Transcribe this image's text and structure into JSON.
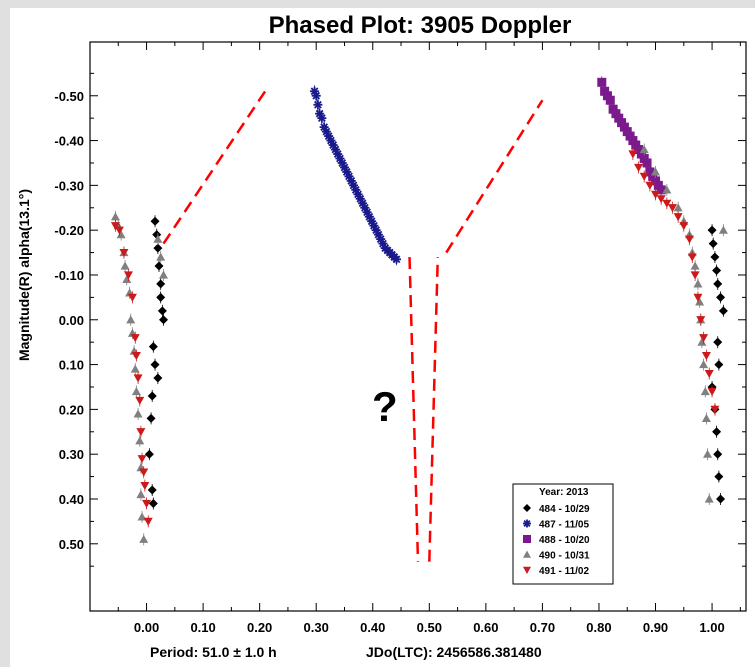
{
  "chart_data": {
    "type": "scatter",
    "title": "Phased Plot: 3905 Doppler",
    "ylabel": "Magnitude(R) alpha(13.1°)",
    "xlabel_left": "Period: 51.0 ± 1.0 h",
    "xlabel_right": "JDo(LTC): 2456586.381480",
    "xlim": [
      -0.1,
      1.06
    ],
    "ylim": [
      0.65,
      -0.62
    ],
    "y_inverted": true,
    "x_ticks": [
      "0.00",
      "0.10",
      "0.20",
      "0.30",
      "0.40",
      "0.50",
      "0.60",
      "0.70",
      "0.80",
      "0.90",
      "1.00"
    ],
    "y_ticks": [
      "-0.50",
      "-0.40",
      "-0.30",
      "-0.20",
      "-0.10",
      "0.00",
      "0.10",
      "0.20",
      "0.30",
      "0.40",
      "0.50"
    ],
    "annotation": "?",
    "legend": {
      "title": "Year: 2013",
      "placement": "bottom-right",
      "entries": [
        {
          "label": "484 - 10/29",
          "marker": "diamond",
          "color": "#000000"
        },
        {
          "label": "487 - 11/05",
          "marker": "asterisk",
          "color": "#1a1a8c"
        },
        {
          "label": "488 - 10/20",
          "marker": "square",
          "color": "#7a1a8c"
        },
        {
          "label": "490 - 10/31",
          "marker": "triangle-up",
          "color": "#808080"
        },
        {
          "label": "491 - 11/02",
          "marker": "triangle-down",
          "color": "#cc1a1a"
        }
      ]
    },
    "model_curve": {
      "color": "#ff0000",
      "style": "dashed",
      "segments": [
        [
          [
            0.03,
            -0.17
          ],
          [
            0.215,
            -0.52
          ]
        ],
        [
          [
            0.465,
            -0.14
          ],
          [
            0.48,
            0.54
          ]
        ],
        [
          [
            0.5,
            0.54
          ],
          [
            0.515,
            -0.14
          ]
        ],
        [
          [
            0.53,
            -0.15
          ],
          [
            0.7,
            -0.49
          ]
        ]
      ]
    },
    "series": [
      {
        "name": "484 - 10/29",
        "marker": "diamond",
        "color": "#000000",
        "x": [
          0.015,
          0.018,
          0.02,
          0.022,
          0.025,
          0.025,
          0.028,
          0.03,
          0.012,
          0.015,
          0.02,
          0.01,
          0.008,
          0.005,
          0.01,
          0.012,
          1.0,
          1.002,
          1.005,
          1.008,
          1.01,
          1.015,
          1.02,
          1.01,
          1.012,
          1.0,
          1.005,
          1.008,
          1.01,
          1.012,
          1.015
        ],
        "y": [
          -0.22,
          -0.19,
          -0.16,
          -0.12,
          -0.08,
          -0.05,
          -0.02,
          0.0,
          0.06,
          0.1,
          0.13,
          0.17,
          0.22,
          0.3,
          0.38,
          0.41,
          -0.2,
          -0.17,
          -0.14,
          -0.11,
          -0.08,
          -0.05,
          -0.02,
          0.05,
          0.1,
          0.15,
          0.2,
          0.25,
          0.3,
          0.35,
          0.4
        ]
      },
      {
        "name": "487 - 11/05",
        "marker": "asterisk",
        "color": "#1a1a8c",
        "x": [
          0.297,
          0.3,
          0.303,
          0.306,
          0.31,
          0.314,
          0.318,
          0.322,
          0.326,
          0.33,
          0.334,
          0.338,
          0.342,
          0.346,
          0.35,
          0.354,
          0.358,
          0.362,
          0.366,
          0.37,
          0.374,
          0.378,
          0.382,
          0.386,
          0.39,
          0.394,
          0.398,
          0.402,
          0.406,
          0.41,
          0.414,
          0.418,
          0.422,
          0.426,
          0.43,
          0.434,
          0.438,
          0.442
        ],
        "y": [
          -0.51,
          -0.5,
          -0.48,
          -0.46,
          -0.45,
          -0.43,
          -0.42,
          -0.41,
          -0.4,
          -0.39,
          -0.38,
          -0.37,
          -0.36,
          -0.35,
          -0.34,
          -0.33,
          -0.32,
          -0.31,
          -0.3,
          -0.29,
          -0.28,
          -0.27,
          -0.26,
          -0.25,
          -0.24,
          -0.23,
          -0.22,
          -0.21,
          -0.2,
          -0.19,
          -0.18,
          -0.17,
          -0.16,
          -0.155,
          -0.15,
          -0.145,
          -0.14,
          -0.135
        ]
      },
      {
        "name": "488 - 10/20",
        "marker": "square",
        "color": "#7a1a8c",
        "x": [
          0.805,
          0.81,
          0.815,
          0.82,
          0.825,
          0.83,
          0.835,
          0.84,
          0.845,
          0.85,
          0.855,
          0.86,
          0.865,
          0.87,
          0.875,
          0.88,
          0.885,
          0.89,
          0.895,
          0.9,
          0.905,
          0.91
        ],
        "y": [
          -0.53,
          -0.51,
          -0.5,
          -0.49,
          -0.47,
          -0.46,
          -0.45,
          -0.44,
          -0.43,
          -0.42,
          -0.41,
          -0.4,
          -0.39,
          -0.38,
          -0.37,
          -0.36,
          -0.35,
          -0.33,
          -0.32,
          -0.31,
          -0.3,
          -0.29
        ]
      },
      {
        "name": "490 - 10/31",
        "marker": "triangle-up",
        "color": "#808080",
        "x": [
          -0.055,
          -0.05,
          -0.045,
          -0.04,
          -0.038,
          -0.035,
          -0.03,
          -0.028,
          -0.025,
          -0.022,
          -0.02,
          -0.018,
          -0.015,
          -0.012,
          -0.01,
          -0.01,
          -0.008,
          -0.005,
          0.02,
          0.025,
          0.03,
          0.88,
          0.9,
          0.92,
          0.94,
          0.95,
          0.96,
          0.965,
          0.97,
          0.975,
          0.978,
          0.98,
          0.982,
          0.985,
          0.988,
          0.99,
          0.992,
          0.995,
          1.02
        ],
        "y": [
          -0.23,
          -0.21,
          -0.19,
          -0.15,
          -0.12,
          -0.09,
          -0.06,
          0.0,
          0.03,
          0.07,
          0.11,
          0.16,
          0.21,
          0.27,
          0.33,
          0.39,
          0.44,
          0.49,
          -0.18,
          -0.14,
          -0.1,
          -0.38,
          -0.33,
          -0.29,
          -0.25,
          -0.22,
          -0.19,
          -0.15,
          -0.12,
          -0.08,
          -0.04,
          0.0,
          0.05,
          0.1,
          0.16,
          0.22,
          0.3,
          0.4,
          -0.2
        ]
      },
      {
        "name": "491 - 11/02",
        "marker": "triangle-down",
        "color": "#cc1a1a",
        "x": [
          -0.055,
          -0.048,
          -0.04,
          -0.032,
          -0.025,
          -0.02,
          -0.018,
          -0.015,
          -0.012,
          -0.01,
          -0.008,
          -0.005,
          -0.003,
          0.0,
          0.003,
          0.86,
          0.87,
          0.88,
          0.89,
          0.9,
          0.91,
          0.92,
          0.93,
          0.94,
          0.95,
          0.96,
          0.965,
          0.97,
          0.975,
          0.98,
          0.985,
          0.99,
          0.995,
          1.0,
          1.005
        ],
        "y": [
          -0.21,
          -0.2,
          -0.15,
          -0.1,
          -0.05,
          0.04,
          0.08,
          0.13,
          0.18,
          0.25,
          0.31,
          0.34,
          0.37,
          0.41,
          0.45,
          -0.37,
          -0.34,
          -0.32,
          -0.3,
          -0.28,
          -0.27,
          -0.26,
          -0.25,
          -0.23,
          -0.21,
          -0.18,
          -0.14,
          -0.1,
          -0.05,
          0.0,
          0.04,
          0.08,
          0.12,
          0.16,
          0.2
        ]
      }
    ]
  }
}
